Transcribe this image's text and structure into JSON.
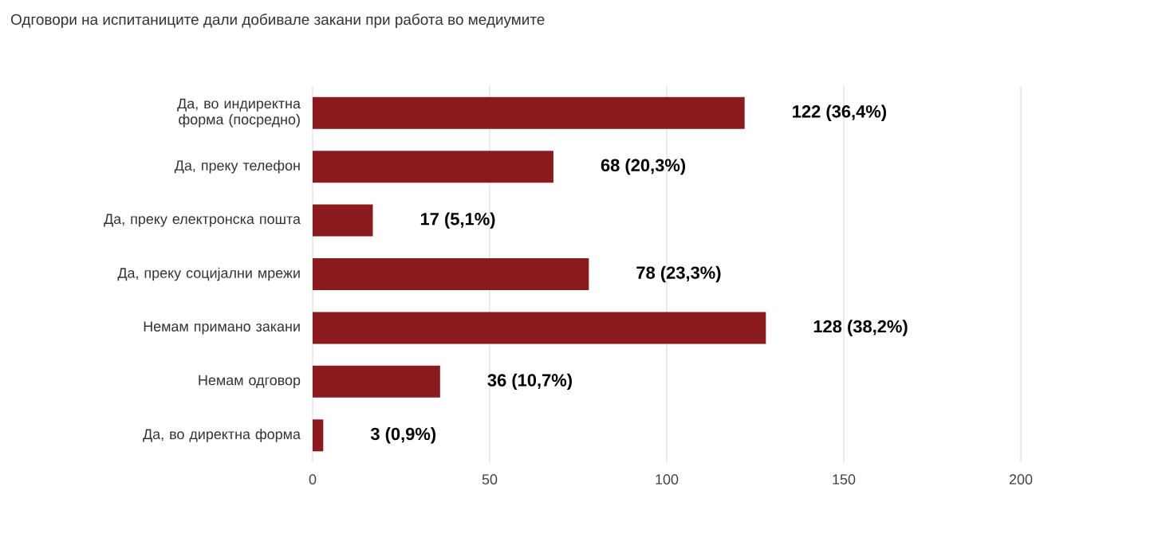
{
  "chart_data": {
    "type": "bar",
    "orientation": "horizontal",
    "title": "Одговори на испитаниците дали добивале закани при работа во медиумите",
    "categories": [
      "Да, во индиректна форма (посредно)",
      "Да, преку телефон",
      "Да, преку електронска пошта",
      "Да, преку социјални мрежи",
      "Немам примано закани",
      "Немам одговор",
      "Да, во директна форма"
    ],
    "values": [
      122,
      68,
      17,
      78,
      128,
      36,
      3
    ],
    "value_labels": [
      "122 (36,4%)",
      "68 (20,3%)",
      "17 (5,1%)",
      "78 (23,3%)",
      "128 (38,2%)",
      "36 (10,7%)",
      "3 (0,9%)"
    ],
    "color": "#8b1a1f",
    "xlim": [
      0,
      200
    ],
    "xticks": [
      0,
      50,
      100,
      150,
      200
    ],
    "grid": "x"
  }
}
